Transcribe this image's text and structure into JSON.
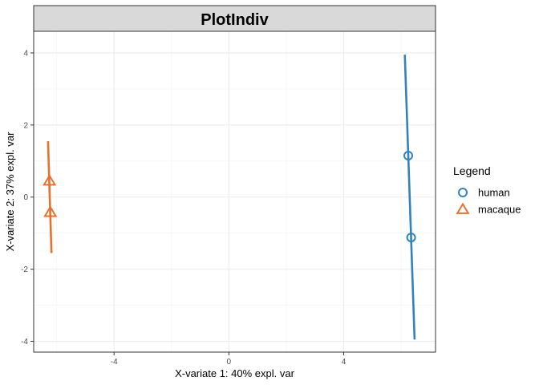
{
  "chart_data": {
    "type": "scatter",
    "title": "PlotIndiv",
    "xlabel": "X-variate 1: 40% expl. var",
    "ylabel": "X-variate 2: 37% expl. var",
    "xlim": [
      -6.8,
      7.2
    ],
    "ylim": [
      -4.3,
      4.6
    ],
    "xticks": [
      -4,
      0,
      4
    ],
    "yticks": [
      -4,
      -2,
      0,
      2,
      4
    ],
    "grid": true,
    "legend": {
      "title": "Legend",
      "position": "right"
    },
    "series": [
      {
        "name": "human",
        "color": "#3182bd",
        "marker": "circle",
        "points": [
          {
            "x": 6.25,
            "y": 1.15
          },
          {
            "x": 6.35,
            "y": -1.12
          }
        ],
        "line": [
          {
            "x": 6.13,
            "y": 3.95
          },
          {
            "x": 6.47,
            "y": -3.95
          }
        ]
      },
      {
        "name": "macaque",
        "color": "#e6712e",
        "marker": "triangle",
        "points": [
          {
            "x": -6.25,
            "y": 0.45
          },
          {
            "x": -6.22,
            "y": -0.42
          }
        ],
        "line": [
          {
            "x": -6.3,
            "y": 1.55
          },
          {
            "x": -6.18,
            "y": -1.55
          }
        ]
      }
    ]
  }
}
